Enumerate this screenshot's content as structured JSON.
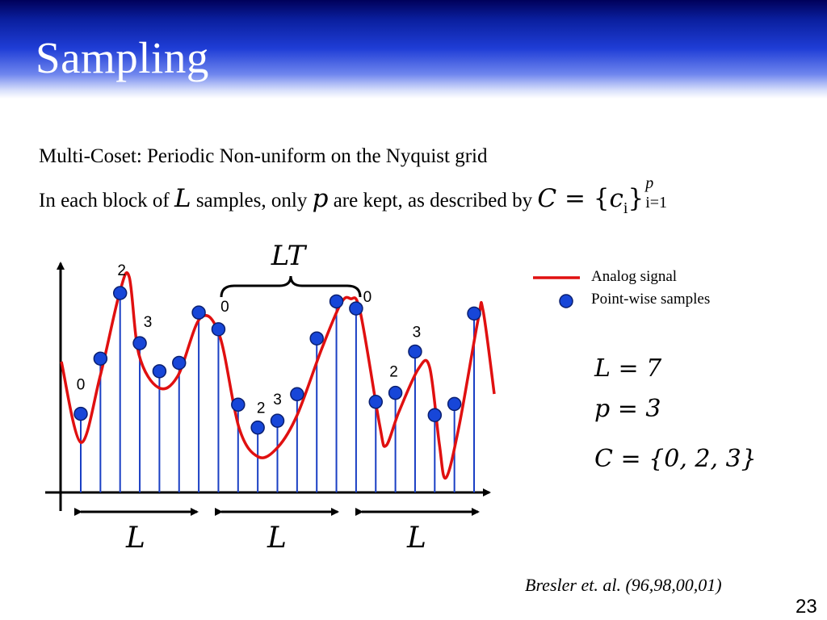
{
  "slide": {
    "title": "Sampling",
    "page_number": "23",
    "citation": "Bresler et. al. (96,98,00,01)"
  },
  "text": {
    "line1": "Multi-Coset: Periodic Non-uniform on the Nyquist grid",
    "line2_a": "In each block of ",
    "line2_L": "L",
    "line2_b": " samples, only ",
    "line2_p": "p",
    "line2_c": " are kept, as described by ",
    "formula_C": "C",
    "formula_eq": " = {",
    "formula_c": "c",
    "formula_i": "i",
    "formula_close": "}",
    "formula_sup": "p",
    "formula_sub": "i=1"
  },
  "diagram": {
    "brace_label": "LT",
    "block_label": "L",
    "legend": {
      "signal_label": "Analog signal",
      "samples_label": "Point-wise samples"
    },
    "params": {
      "L_eq": "L = 7",
      "p_eq": "p = 3",
      "C_eq": "C = {0, 2, 3}"
    },
    "colors": {
      "signal": "#e01010",
      "stem": "#1a3fc4",
      "sample": "#1746d8",
      "axis": "#000000"
    },
    "samples": [
      {
        "v": 0.263
      },
      {
        "v": 0.6
      },
      {
        "v": 1.0
      },
      {
        "v": 0.694
      },
      {
        "v": 0.523
      },
      {
        "v": 0.574
      },
      {
        "v": 0.881
      },
      {
        "v": 0.779
      },
      {
        "v": 0.319
      },
      {
        "v": 0.179
      },
      {
        "v": 0.221
      },
      {
        "v": 0.383
      },
      {
        "v": 0.723
      },
      {
        "v": 0.949
      },
      {
        "v": 0.906
      },
      {
        "v": 0.336
      },
      {
        "v": 0.391
      },
      {
        "v": 0.643
      },
      {
        "v": 0.255
      },
      {
        "v": 0.323
      },
      {
        "v": 0.875
      }
    ],
    "coset_labels": [
      {
        "index": 0,
        "text": "0"
      },
      {
        "index": 2,
        "text": "2"
      },
      {
        "index": 3,
        "text": "3"
      },
      {
        "index": 7,
        "text": "0"
      },
      {
        "index": 9,
        "text": "2"
      },
      {
        "index": 10,
        "text": "3"
      },
      {
        "index": 14,
        "text": "0"
      },
      {
        "index": 16,
        "text": "2"
      },
      {
        "index": 17,
        "text": "3"
      }
    ]
  }
}
